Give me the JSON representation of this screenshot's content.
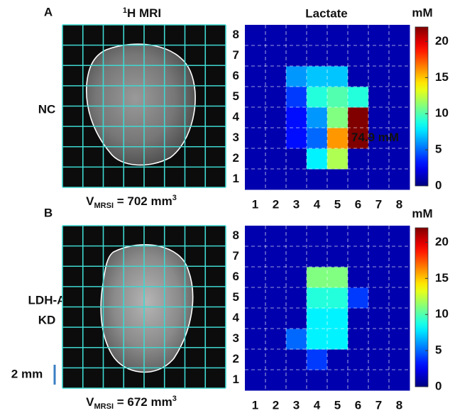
{
  "header": {
    "mri_sup": "1",
    "mri_text": "H MRI"
  },
  "chart_data": [
    {
      "type": "heatmap",
      "title": "Lactate",
      "panel": "A",
      "row_label": [
        "NC"
      ],
      "volume": {
        "symbol": "V",
        "subscript": "MRSI",
        "text": " = 702 mm",
        "superscript": "3"
      },
      "x": [
        1,
        2,
        3,
        4,
        5,
        6,
        7,
        8
      ],
      "y": [
        1,
        2,
        3,
        4,
        5,
        6,
        7,
        8
      ],
      "z": [
        [
          1,
          1,
          1,
          1,
          1,
          1,
          1,
          1
        ],
        [
          1,
          1,
          1,
          8,
          12,
          1,
          1,
          1
        ],
        [
          1,
          1,
          3,
          5,
          16,
          74.9,
          1,
          1
        ],
        [
          1,
          1,
          3,
          6,
          11,
          22,
          1,
          1
        ],
        [
          1,
          1,
          4,
          9,
          10,
          9,
          1,
          1
        ],
        [
          1,
          1,
          6,
          7,
          7,
          1,
          1,
          1
        ],
        [
          1,
          1,
          1,
          1,
          1,
          1,
          1,
          1
        ],
        [
          1,
          1,
          1,
          1,
          1,
          1,
          1,
          1
        ]
      ],
      "annotations": [
        {
          "text": "74.9 mM"
        }
      ],
      "colorbar_label": "mM",
      "zlim": [
        0,
        22
      ],
      "zticks": [
        0,
        5,
        10,
        15,
        20
      ],
      "colormap": "jet",
      "grid": true
    },
    {
      "type": "heatmap",
      "panel": "B",
      "row_label": [
        "LDH-A",
        "KD"
      ],
      "volume": {
        "symbol": "V",
        "subscript": "MRSI",
        "text": " = 672 mm",
        "superscript": "3"
      },
      "scale_bar": "2 mm",
      "x": [
        1,
        2,
        3,
        4,
        5,
        6,
        7,
        8
      ],
      "y": [
        1,
        2,
        3,
        4,
        5,
        6,
        7,
        8
      ],
      "z": [
        [
          1,
          1,
          1,
          1,
          1,
          1,
          1,
          1
        ],
        [
          1,
          1,
          1,
          4,
          1,
          1,
          1,
          1
        ],
        [
          1,
          1,
          5,
          8,
          8,
          1,
          1,
          1
        ],
        [
          1,
          1,
          1,
          8,
          8,
          1,
          1,
          1
        ],
        [
          1,
          1,
          1,
          9,
          9,
          4,
          1,
          1
        ],
        [
          1,
          1,
          1,
          11,
          11,
          1,
          1,
          1
        ],
        [
          1,
          1,
          1,
          1,
          1,
          1,
          1,
          1
        ],
        [
          1,
          1,
          1,
          1,
          1,
          1,
          1,
          1
        ]
      ],
      "colorbar_label": "mM",
      "zlim": [
        0,
        22
      ],
      "zticks": [
        0,
        5,
        10,
        15,
        20
      ],
      "colormap": "jet",
      "grid": true
    }
  ]
}
